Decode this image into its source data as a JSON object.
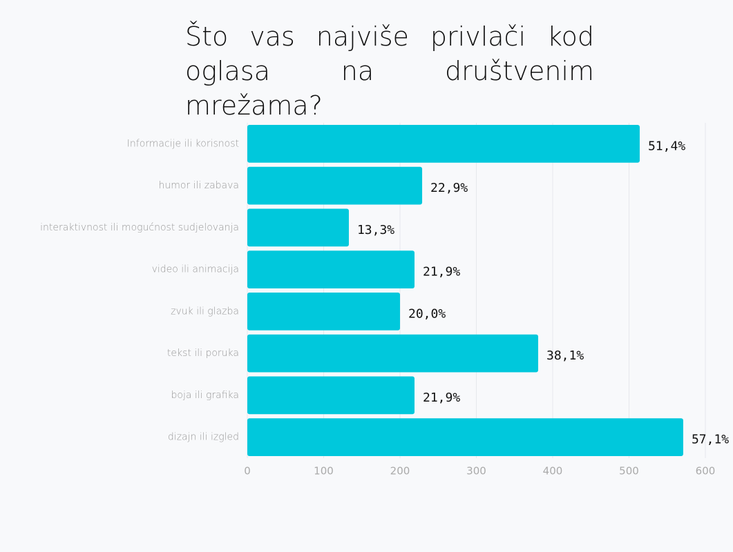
{
  "chart_data": {
    "type": "bar",
    "orientation": "horizontal",
    "title": "Što vas najviše privlači kod oglasa na društvenim mrežama?",
    "categories": [
      "Informacije ili korisnost",
      "humor ili zabava",
      "interaktivnost ili mogućnost sudjelovanja",
      "video ili animacija",
      "zvuk ili glazba",
      "tekst ili poruka",
      "boja ili grafika",
      "dizajn ili izgled"
    ],
    "values": [
      514,
      229,
      133,
      219,
      200,
      381,
      219,
      571
    ],
    "value_labels": [
      "51,4%",
      "22,9%",
      "13,3%",
      "21,9%",
      "20,0%",
      "38,1%",
      "21,9%",
      "57,1%"
    ],
    "color": "#00c8dc",
    "xlim": [
      0,
      600
    ],
    "xticks": [
      0,
      100,
      200,
      300,
      400,
      500,
      600
    ],
    "grid": true
  }
}
